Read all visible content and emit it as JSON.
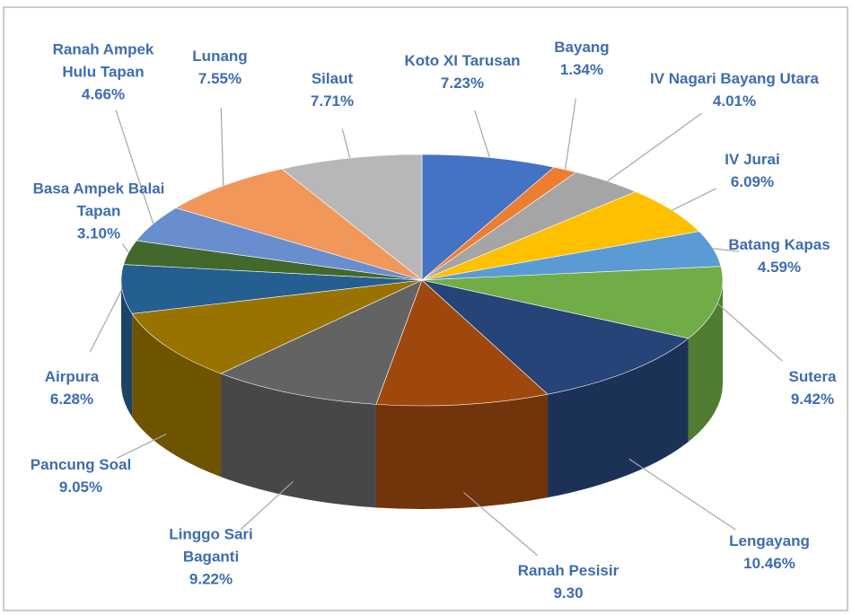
{
  "chart_data": {
    "type": "pie",
    "categories": [
      "Koto XI Tarusan",
      "Bayang",
      "IV Nagari Bayang Utara",
      "IV Jurai",
      "Batang Kapas",
      "Sutera",
      "Lengayang",
      "Ranah Pesisir",
      "Linggo Sari Baganti",
      "Pancung Soal",
      "Airpura",
      "Basa Ampek Balai Tapan",
      "Ranah Ampek Hulu Tapan",
      "Lunang",
      "Silaut"
    ],
    "values": [
      7.23,
      1.34,
      4.01,
      6.09,
      4.59,
      9.42,
      10.46,
      9.3,
      9.22,
      9.05,
      6.28,
      3.1,
      4.66,
      7.55,
      7.71
    ],
    "value_labels": [
      "7.23%",
      "1.34%",
      "4.01%",
      "6.09%",
      "4.59%",
      "9.42%",
      "10.46%",
      "9.30",
      "9.22%",
      "9.05%",
      "6.28%",
      "3.10%",
      "4.66%",
      "7.55%",
      "7.71%"
    ],
    "colors": [
      "#4472c4",
      "#ed7d31",
      "#a5a5a5",
      "#ffc000",
      "#5b9bd5",
      "#70ad47",
      "#264478",
      "#9e480e",
      "#636363",
      "#997300",
      "#255e91",
      "#43682b",
      "#698ed0",
      "#f1975a",
      "#b7b7b7"
    ]
  }
}
